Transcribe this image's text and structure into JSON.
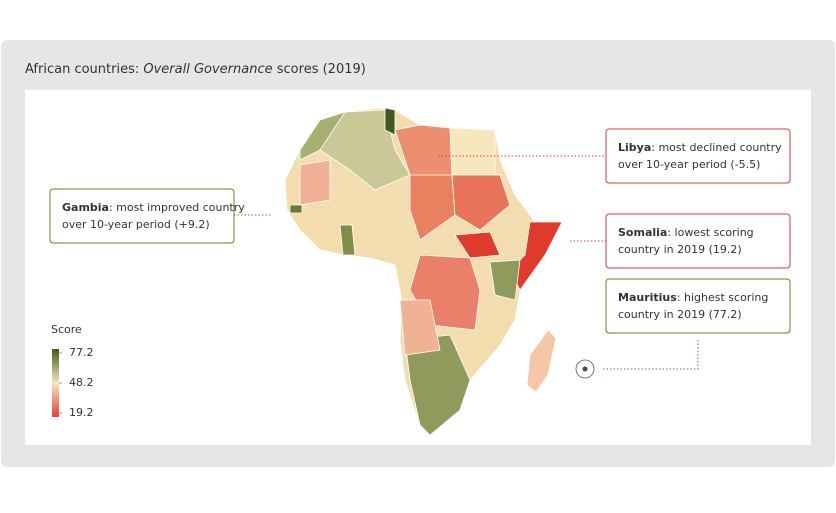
{
  "title": {
    "prefix": "African countries:",
    "emphasis": "Overall Governance",
    "suffix": "scores (2019)"
  },
  "legend": {
    "title": "Score",
    "range": [
      19.2,
      77.2
    ],
    "ticks": [
      77.2,
      48.2,
      19.2
    ],
    "colors": [
      "#e8412f",
      "#f6e7bd",
      "#3f5a1e"
    ]
  },
  "callouts": [
    {
      "name": "Gambia",
      "lines": [
        ": most improved country",
        "over 10-year period (+9.2)"
      ],
      "color": "#6b7a2e"
    },
    {
      "name": "Libya",
      "lines": [
        ": most declined country",
        "over 10-year period (-5.5)"
      ],
      "color": "#d9393a"
    },
    {
      "name": "Somalia",
      "lines": [
        ": lowest scoring",
        "country in 2019 (19.2)"
      ],
      "color": "#d9393a"
    },
    {
      "name": "Mauritius",
      "lines": [
        ": highest scoring",
        "country in 2019 (77.2)"
      ],
      "color": "#6b7a2e"
    }
  ]
}
